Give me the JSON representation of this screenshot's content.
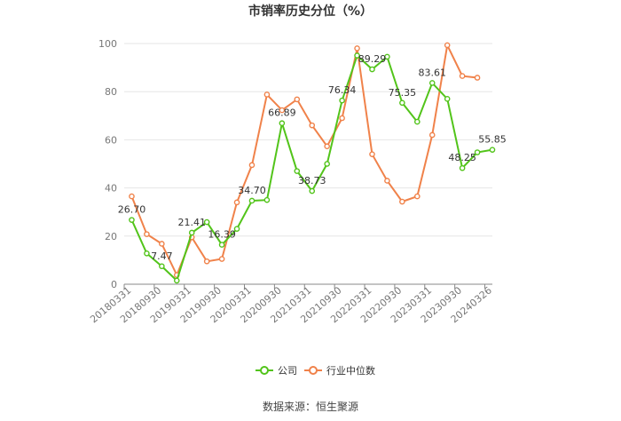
{
  "chart_data": {
    "type": "line",
    "title": "市销率历史分位（%）",
    "source": "数据来源：恒生聚源",
    "ylim": [
      0,
      100
    ],
    "yticks": [
      0,
      20,
      40,
      60,
      80,
      100
    ],
    "grid": true,
    "legend_position": "bottom",
    "x": [
      "20180331",
      "20180630",
      "20180930",
      "20181231",
      "20190331",
      "20190630",
      "20190930",
      "20191231",
      "20200331",
      "20200630",
      "20200930",
      "20201231",
      "20210331",
      "20210630",
      "20210930",
      "20211231",
      "20220331",
      "20220630",
      "20220930",
      "20221231",
      "20230331",
      "20230630",
      "20230930",
      "20231231",
      "20240326"
    ],
    "xtick_labels": [
      "20180331",
      "20180930",
      "20190331",
      "20190930",
      "20200331",
      "20200930",
      "20210331",
      "20210930",
      "20220331",
      "20220930",
      "20230331",
      "20230930",
      "20240326"
    ],
    "series": [
      {
        "name": "公司",
        "color": "#52c41a",
        "values": [
          26.7,
          12.8,
          7.47,
          1.5,
          21.41,
          25.8,
          16.39,
          23.0,
          34.7,
          35.0,
          66.89,
          47.0,
          38.73,
          50.0,
          76.34,
          95.0,
          89.29,
          94.5,
          75.35,
          67.5,
          83.61,
          77.0,
          48.25,
          54.8,
          55.85
        ],
        "labels": [
          "26.70",
          null,
          "7.47",
          null,
          "21.41",
          null,
          "16.39",
          null,
          "34.70",
          null,
          "66.89",
          null,
          "38.73",
          null,
          "76.34",
          null,
          "89.29",
          null,
          "75.35",
          null,
          "83.61",
          null,
          "48.25",
          null,
          "55.85"
        ]
      },
      {
        "name": "行业中位数",
        "color": "#f0824a",
        "values": [
          36.5,
          20.8,
          16.8,
          3.8,
          19.5,
          9.5,
          10.5,
          34.0,
          49.5,
          78.8,
          72.3,
          76.8,
          66.0,
          57.3,
          69.0,
          98.0,
          54.0,
          43.0,
          34.3,
          36.5,
          62.0,
          99.3,
          86.5,
          85.8,
          null
        ]
      }
    ]
  }
}
